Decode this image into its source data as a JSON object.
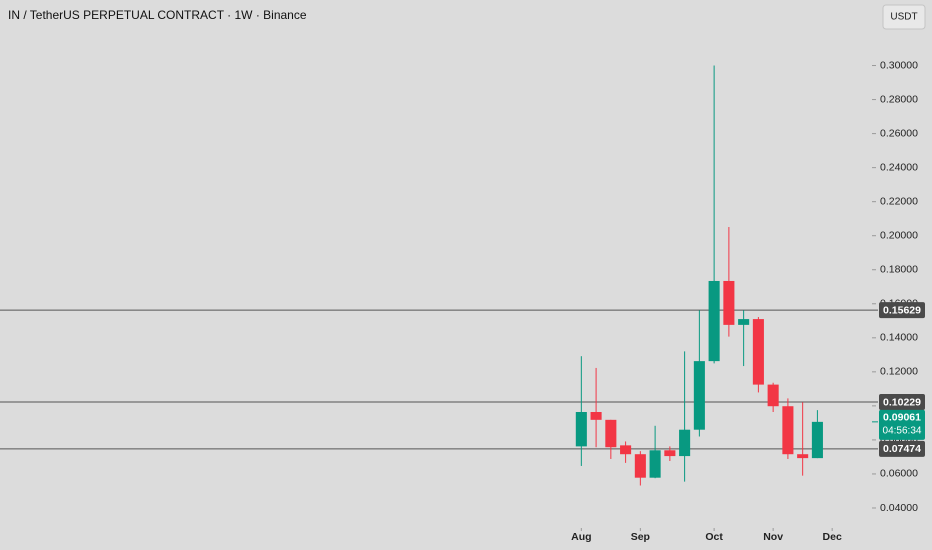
{
  "chart_data": {
    "type": "candlestick",
    "title": "IN / TetherUS PERPETUAL CONTRACT · 1W · Binance",
    "currency": "USDT",
    "x": [
      0,
      1,
      2,
      3,
      4,
      5,
      6,
      7,
      8,
      9,
      10,
      11,
      12,
      13,
      14,
      15,
      16
    ],
    "open": [
      0.0762,
      0.0964,
      0.0918,
      0.0768,
      0.0716,
      0.0578,
      0.0739,
      0.0705,
      0.086,
      0.1263,
      0.1734,
      0.1476,
      0.151,
      0.1125,
      0.0998,
      0.0716,
      0.0693
    ],
    "high": [
      0.1292,
      0.1223,
      0.0918,
      0.0791,
      0.0734,
      0.0883,
      0.0762,
      0.132,
      0.1562,
      0.3,
      0.2051,
      0.1562,
      0.1522,
      0.1136,
      0.1044,
      0.1021,
      0.0975
    ],
    "low": [
      0.0647,
      0.0757,
      0.0688,
      0.0665,
      0.0532,
      0.0575,
      0.0676,
      0.0555,
      0.082,
      0.125,
      0.1407,
      0.1234,
      0.1079,
      0.0964,
      0.0688,
      0.059,
      0.0693
    ],
    "close": [
      0.0964,
      0.0918,
      0.0757,
      0.0716,
      0.0578,
      0.0739,
      0.0705,
      0.086,
      0.1263,
      0.1734,
      0.1476,
      0.151,
      0.1125,
      0.0998,
      0.0716,
      0.0693,
      0.09061
    ],
    "up_color": "#089981",
    "down_color": "#f23645",
    "xlim": [
      -39.4,
      19.7
    ],
    "xticks": [
      {
        "value": 0,
        "label": "Aug"
      },
      {
        "value": 4,
        "label": "Sep"
      },
      {
        "value": 9,
        "label": "Oct"
      },
      {
        "value": 13,
        "label": "Nov"
      },
      {
        "value": 17,
        "label": "Dec"
      }
    ],
    "ylim": [
      0.03,
      0.315
    ],
    "yticks": [
      {
        "value": 0.04,
        "label": "0.04000"
      },
      {
        "value": 0.06,
        "label": "0.06000"
      },
      {
        "value": 0.08,
        "label": "0.08000"
      },
      {
        "value": 0.1,
        "label": "0.10000"
      },
      {
        "value": 0.12,
        "label": "0.12000"
      },
      {
        "value": 0.14,
        "label": "0.14000"
      },
      {
        "value": 0.16,
        "label": "0.16000"
      },
      {
        "value": 0.18,
        "label": "0.18000"
      },
      {
        "value": 0.2,
        "label": "0.20000"
      },
      {
        "value": 0.22,
        "label": "0.22000"
      },
      {
        "value": 0.24,
        "label": "0.24000"
      },
      {
        "value": 0.26,
        "label": "0.26000"
      },
      {
        "value": 0.28,
        "label": "0.28000"
      },
      {
        "value": 0.3,
        "label": "0.30000"
      }
    ],
    "price_lines": [
      0.15629,
      0.10229,
      0.07474
    ],
    "last_price": 0.09061,
    "countdown": "04:56:34"
  }
}
